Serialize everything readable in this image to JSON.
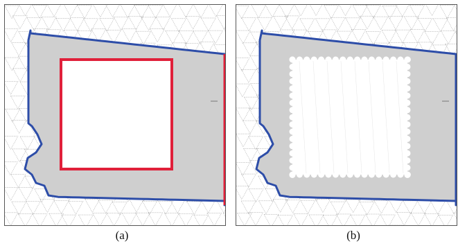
{
  "figure": {
    "panels": [
      {
        "id": "a",
        "caption": "(a)",
        "shows_rectangle": true,
        "shows_holes": false
      },
      {
        "id": "b",
        "caption": "(b)",
        "shows_rectangle": false,
        "shows_holes": true
      }
    ]
  },
  "colors": {
    "mesh_lines": "#9a9a9a",
    "fill_region": "#cfcfcf",
    "boundary": "#2d4da8",
    "rectangle": "#e0203a",
    "frame": "#555555"
  }
}
